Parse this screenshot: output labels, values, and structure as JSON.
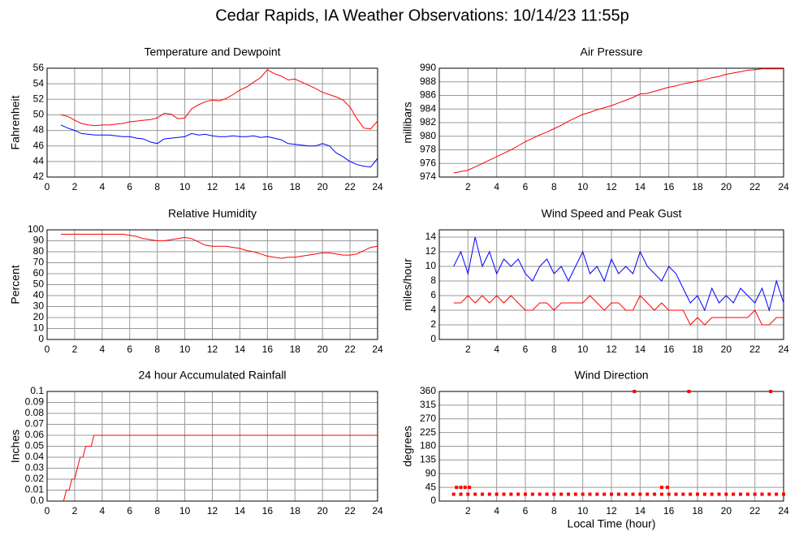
{
  "title": "Cedar Rapids, IA Weather Observations: 10/14/23 11:55p",
  "chart_data": [
    {
      "type": "line",
      "title": "Temperature and Dewpoint",
      "y_label": "Fahrenheit",
      "x": [
        1,
        1.5,
        2,
        2.5,
        3,
        3.5,
        4,
        4.5,
        5,
        5.5,
        6,
        6.5,
        7,
        7.5,
        8,
        8.5,
        9,
        9.5,
        10,
        10.5,
        11,
        11.5,
        12,
        12.5,
        13,
        13.5,
        14,
        14.5,
        15,
        15.5,
        16,
        16.5,
        17,
        17.5,
        18,
        18.5,
        19,
        19.5,
        20,
        20.5,
        21,
        21.5,
        22,
        22.5,
        23,
        23.5,
        24
      ],
      "series": [
        {
          "color": "#ff0000",
          "values": [
            50,
            49.8,
            49.3,
            48.9,
            48.7,
            48.6,
            48.7,
            48.7,
            48.8,
            48.9,
            49.1,
            49.2,
            49.3,
            49.4,
            49.6,
            50.2,
            50.1,
            49.5,
            49.6,
            50.8,
            51.3,
            51.7,
            51.9,
            51.8,
            52.1,
            52.6,
            53.2,
            53.6,
            54.2,
            54.8,
            55.8,
            55.3,
            55,
            54.5,
            54.6,
            54.2,
            53.8,
            53.4,
            52.9,
            52.6,
            52.3,
            51.9,
            51,
            49.5,
            48.3,
            48.2,
            49.2
          ]
        },
        {
          "color": "#0000ff",
          "values": [
            48.7,
            48.3,
            48,
            47.6,
            47.5,
            47.4,
            47.4,
            47.4,
            47.3,
            47.2,
            47.2,
            47,
            46.9,
            46.5,
            46.3,
            46.9,
            47,
            47.1,
            47.2,
            47.6,
            47.4,
            47.5,
            47.3,
            47.2,
            47.2,
            47.3,
            47.2,
            47.2,
            47.3,
            47.1,
            47.2,
            47,
            46.8,
            46.3,
            46.2,
            46.1,
            46,
            46,
            46.3,
            46,
            45.1,
            44.6,
            44,
            43.6,
            43.4,
            43.3,
            44.4
          ]
        }
      ],
      "xlim": [
        0,
        24
      ],
      "xticks": [
        0,
        2,
        4,
        6,
        8,
        10,
        12,
        14,
        16,
        18,
        20,
        22,
        24
      ],
      "ylim": [
        42,
        56
      ],
      "yticks": [
        42,
        44,
        46,
        48,
        50,
        52,
        54,
        56
      ],
      "grid": true
    },
    {
      "type": "line",
      "title": "Air Pressure",
      "y_label": "millibars",
      "x": [
        1,
        1.5,
        2,
        2.5,
        3,
        3.5,
        4,
        4.5,
        5,
        5.5,
        6,
        6.5,
        7,
        7.5,
        8,
        8.5,
        9,
        9.5,
        10,
        10.5,
        11,
        11.5,
        12,
        12.5,
        13,
        13.5,
        14,
        14.5,
        15,
        15.5,
        16,
        16.5,
        17,
        17.5,
        18,
        18.5,
        19,
        19.5,
        20,
        20.5,
        21,
        21.5,
        22,
        22.5,
        23,
        23.5,
        24
      ],
      "series": [
        {
          "color": "#ff0000",
          "values": [
            974.6,
            974.8,
            975,
            975.5,
            976,
            976.5,
            977,
            977.5,
            978,
            978.6,
            979.2,
            979.7,
            980.2,
            980.6,
            981.1,
            981.6,
            982.2,
            982.7,
            983.2,
            983.5,
            983.9,
            984.2,
            984.5,
            984.9,
            985.3,
            985.7,
            986.2,
            986.3,
            986.6,
            986.9,
            987.2,
            987.4,
            987.7,
            987.9,
            988.1,
            988.3,
            988.6,
            988.8,
            989.1,
            989.3,
            989.5,
            989.7,
            989.8,
            989.9,
            989.9,
            989.9,
            989.9
          ]
        }
      ],
      "xlim": [
        0,
        24
      ],
      "xticks": [
        2,
        4,
        6,
        8,
        10,
        12,
        14,
        16,
        18,
        20,
        22,
        24
      ],
      "ylim": [
        974,
        990
      ],
      "yticks": [
        974,
        976,
        978,
        980,
        982,
        984,
        986,
        988,
        990
      ],
      "grid": true
    },
    {
      "type": "line",
      "title": "Relative Humidity",
      "y_label": "Percent",
      "x": [
        1,
        1.5,
        2,
        2.5,
        3,
        3.5,
        4,
        4.5,
        5,
        5.5,
        6,
        6.5,
        7,
        7.5,
        8,
        8.5,
        9,
        9.5,
        10,
        10.5,
        11,
        11.5,
        12,
        12.5,
        13,
        13.5,
        14,
        14.5,
        15,
        15.5,
        16,
        16.5,
        17,
        17.5,
        18,
        18.5,
        19,
        19.5,
        20,
        20.5,
        21,
        21.5,
        22,
        22.5,
        23,
        23.5,
        24
      ],
      "series": [
        {
          "color": "#ff0000",
          "values": [
            96,
            96,
            96,
            96,
            96,
            96,
            96,
            96,
            96,
            96,
            95,
            94,
            92,
            91,
            90,
            90,
            91,
            92,
            93,
            92,
            89,
            86,
            85,
            85,
            85,
            84,
            83,
            81,
            80,
            78,
            76,
            75,
            74,
            75,
            75,
            76,
            77,
            78,
            79,
            79,
            78,
            77,
            77,
            78,
            81,
            84,
            85
          ]
        }
      ],
      "xlim": [
        0,
        24
      ],
      "xticks": [
        0,
        2,
        4,
        6,
        8,
        10,
        12,
        14,
        16,
        18,
        20,
        22,
        24
      ],
      "ylim": [
        0,
        100
      ],
      "yticks": [
        0,
        10,
        20,
        30,
        40,
        50,
        60,
        70,
        80,
        90,
        100
      ],
      "grid": true
    },
    {
      "type": "line",
      "title": "Wind Speed and Peak Gust",
      "y_label": "miles/hour",
      "x": [
        1,
        1.5,
        2,
        2.5,
        3,
        3.5,
        4,
        4.5,
        5,
        5.5,
        6,
        6.5,
        7,
        7.5,
        8,
        8.5,
        9,
        9.5,
        10,
        10.5,
        11,
        11.5,
        12,
        12.5,
        13,
        13.5,
        14,
        14.5,
        15,
        15.5,
        16,
        16.5,
        17,
        17.5,
        18,
        18.5,
        19,
        19.5,
        20,
        20.5,
        21,
        21.5,
        22,
        22.5,
        23,
        23.5,
        24
      ],
      "series": [
        {
          "color": "#0000ff",
          "values": [
            10,
            12,
            9,
            14,
            10,
            12,
            9,
            11,
            10,
            11,
            9,
            8,
            10,
            11,
            9,
            10,
            8,
            10,
            12,
            9,
            10,
            8,
            11,
            9,
            10,
            9,
            12,
            10,
            9,
            8,
            10,
            9,
            7,
            5,
            6,
            4,
            7,
            5,
            6,
            5,
            7,
            6,
            5,
            7,
            4,
            8,
            5
          ]
        },
        {
          "color": "#ff0000",
          "values": [
            5,
            5,
            6,
            5,
            6,
            5,
            6,
            5,
            6,
            5,
            4,
            4,
            5,
            5,
            4,
            5,
            5,
            5,
            5,
            6,
            5,
            4,
            5,
            5,
            4,
            4,
            6,
            5,
            4,
            5,
            4,
            4,
            4,
            2,
            3,
            2,
            3,
            3,
            3,
            3,
            3,
            3,
            4,
            2,
            2,
            3,
            3
          ]
        }
      ],
      "xlim": [
        0,
        24
      ],
      "xticks": [
        2,
        4,
        6,
        8,
        10,
        12,
        14,
        16,
        18,
        20,
        22,
        24
      ],
      "ylim": [
        0,
        15
      ],
      "yticks": [
        0,
        2,
        4,
        6,
        8,
        10,
        12,
        14
      ],
      "grid": true
    },
    {
      "type": "line",
      "title": "24 hour Accumulated Rainfall",
      "y_label": "Inches",
      "x": [
        1.2,
        1.4,
        1.6,
        1.8,
        2,
        2.2,
        2.4,
        2.6,
        2.8,
        3,
        3.2,
        3.4,
        24
      ],
      "series": [
        {
          "color": "#ff0000",
          "values": [
            0,
            0.01,
            0.01,
            0.02,
            0.02,
            0.03,
            0.04,
            0.04,
            0.05,
            0.05,
            0.05,
            0.06,
            0.06
          ]
        }
      ],
      "xlim": [
        0,
        24
      ],
      "xticks": [
        0,
        2,
        4,
        6,
        8,
        10,
        12,
        14,
        16,
        18,
        20,
        22,
        24
      ],
      "ylim": [
        0,
        0.1
      ],
      "yticks": [
        {
          "value": 0,
          "label": "0.0"
        },
        0.01,
        0.02,
        0.03,
        0.04,
        0.05,
        0.06,
        0.07,
        0.08,
        0.09,
        0.1
      ],
      "grid": true
    },
    {
      "type": "scatter",
      "title": "Wind Direction",
      "y_label": "degrees",
      "x_label": "Local Time (hour)",
      "x": [
        1,
        1.5,
        2,
        2.5,
        3,
        3.5,
        4,
        4.5,
        5,
        5.5,
        6,
        6.5,
        7,
        7.5,
        8,
        8.5,
        9,
        9.5,
        10,
        10.5,
        11,
        11.5,
        12,
        12.5,
        13,
        13.5,
        14,
        14.5,
        15,
        15.5,
        16,
        16.5,
        17,
        17.5,
        18,
        18.5,
        19,
        19.5,
        20,
        20.5,
        21,
        21.5,
        22,
        22.5,
        23,
        23.5,
        24,
        1.2,
        1.5,
        1.8,
        2.1,
        15.5,
        15.9,
        13.6,
        17.4,
        23.1
      ],
      "series": [
        {
          "color": "#ff0000",
          "values": [
            22.5,
            22.5,
            22.5,
            22.5,
            22.5,
            22.5,
            22.5,
            22.5,
            22.5,
            22.5,
            22.5,
            22.5,
            22.5,
            22.5,
            22.5,
            22.5,
            22.5,
            22.5,
            22.5,
            22.5,
            22.5,
            22.5,
            22.5,
            22.5,
            22.5,
            22.5,
            22.5,
            22.5,
            22.5,
            22.5,
            22.5,
            22.5,
            22.5,
            22.5,
            22.5,
            22.5,
            22.5,
            22.5,
            22.5,
            22.5,
            22.5,
            22.5,
            22.5,
            22.5,
            22.5,
            22.5,
            22.5,
            45,
            45,
            45,
            45,
            45,
            45,
            360,
            360,
            360
          ]
        }
      ],
      "xlim": [
        0,
        24
      ],
      "xticks": [
        2,
        4,
        6,
        8,
        10,
        12,
        14,
        16,
        18,
        20,
        22,
        24
      ],
      "ylim": [
        0,
        360
      ],
      "yticks": [
        0,
        45,
        90,
        135,
        180,
        225,
        270,
        315,
        360
      ],
      "grid": true
    }
  ]
}
